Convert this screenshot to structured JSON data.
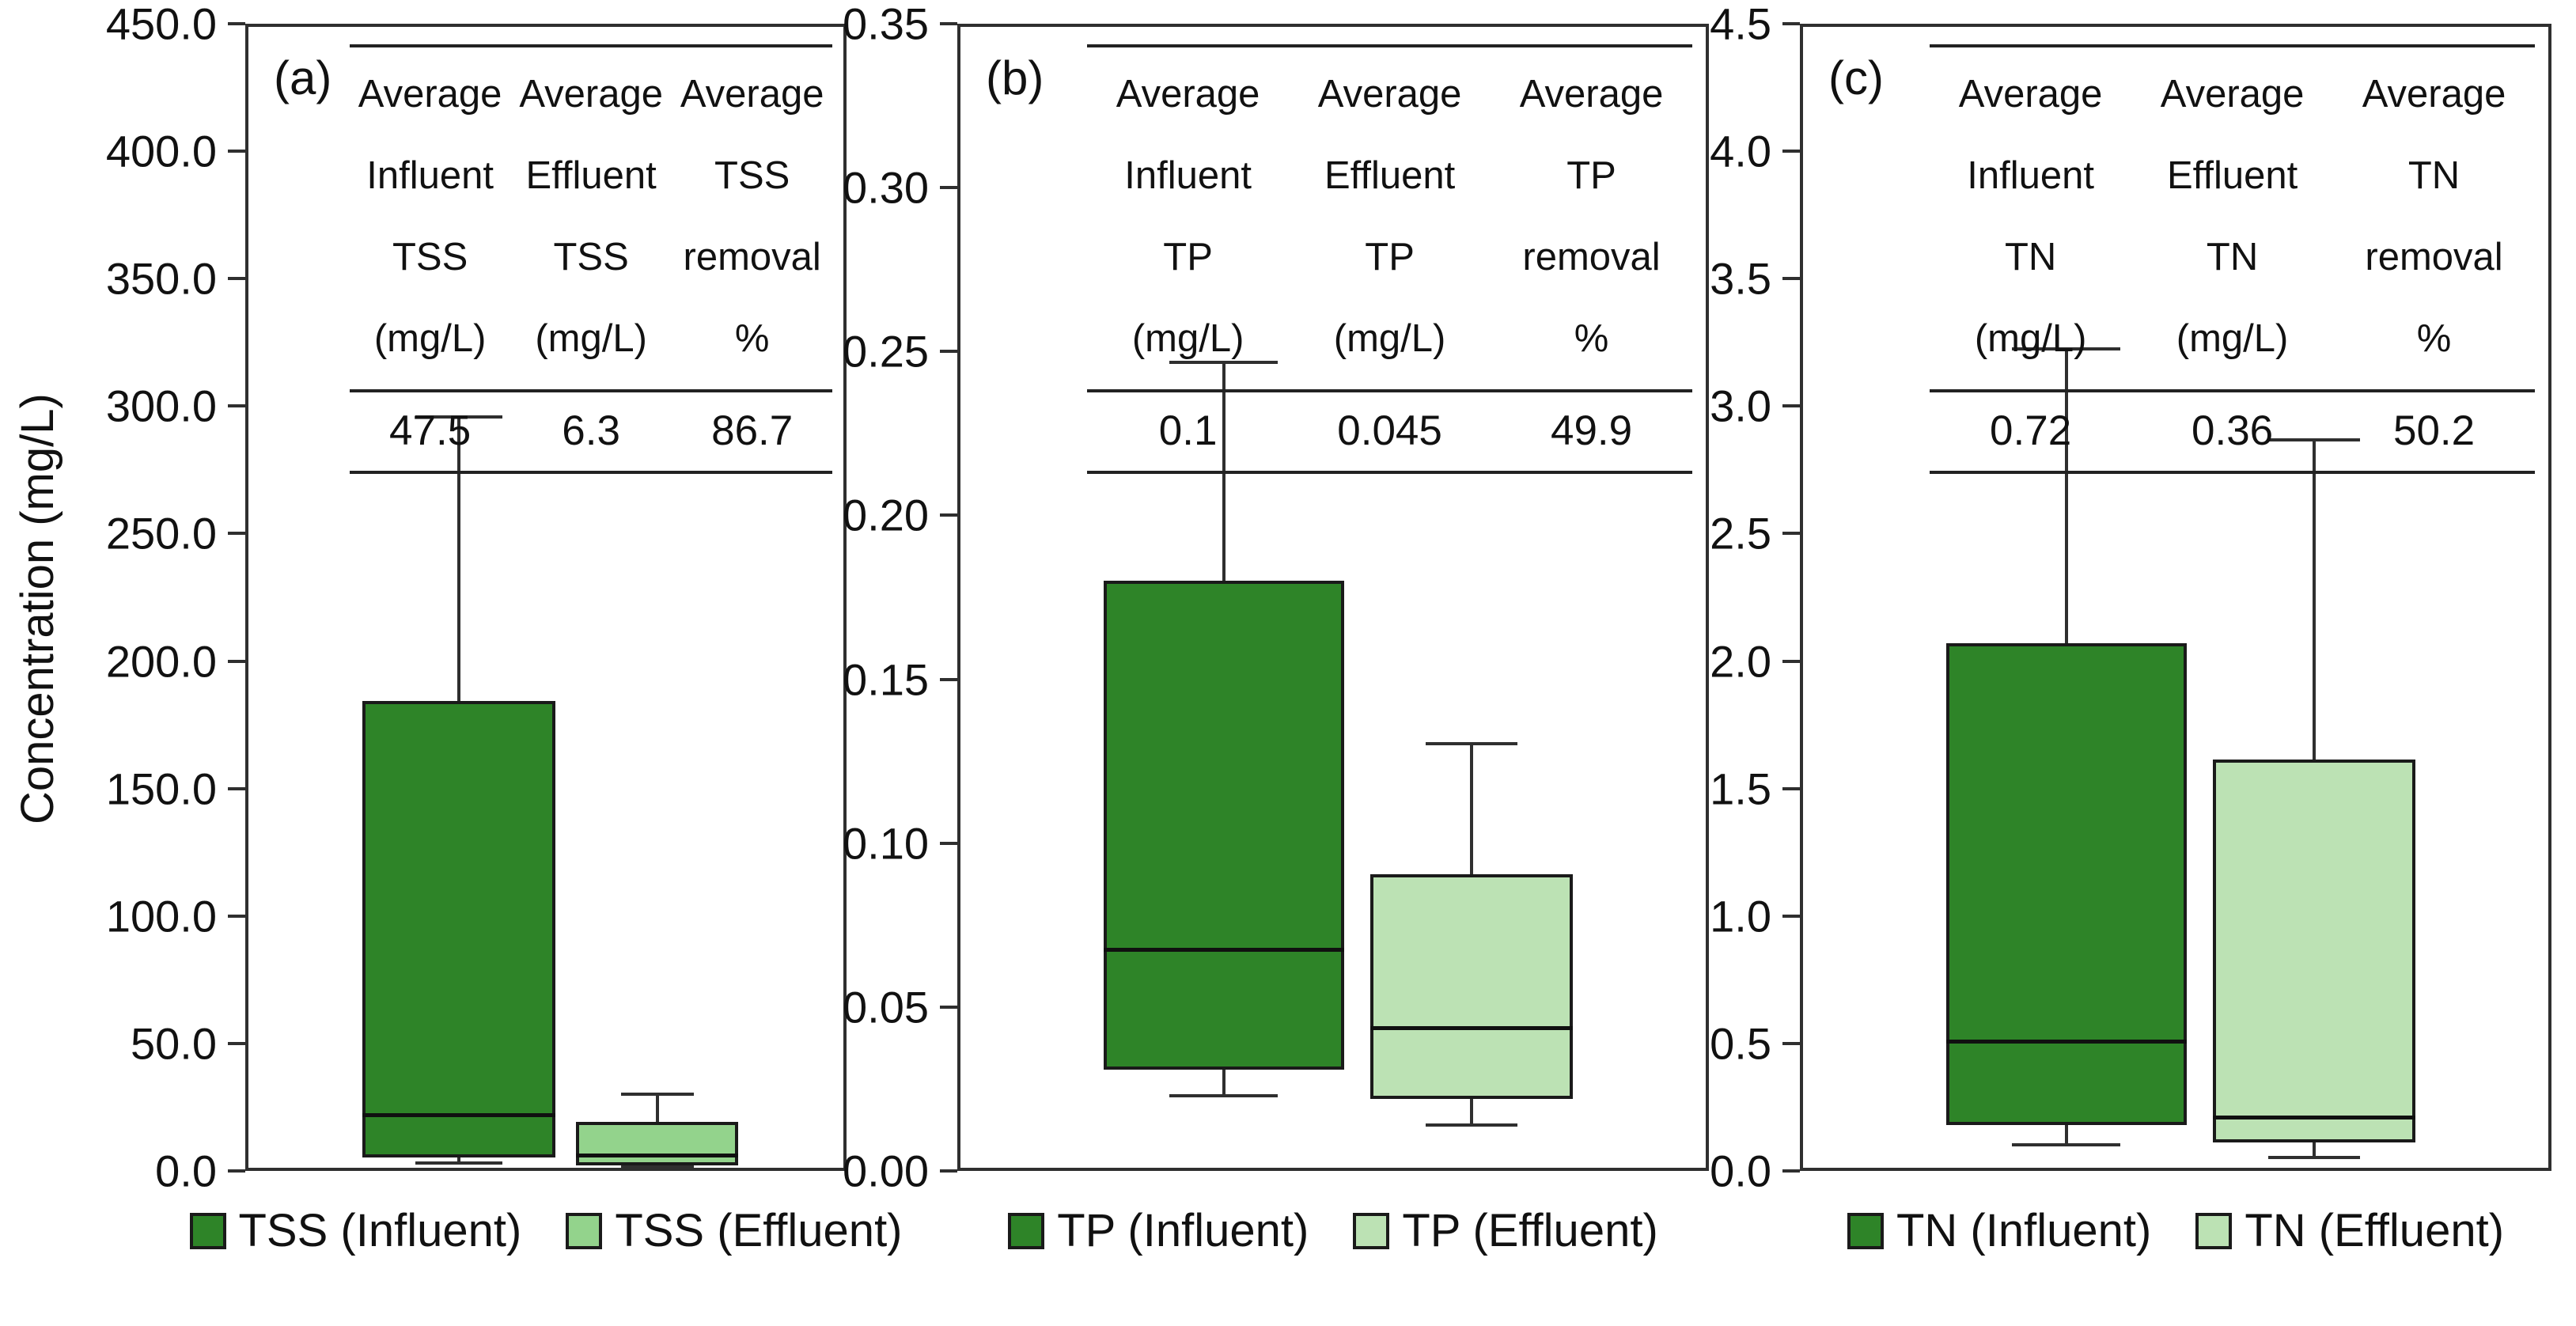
{
  "figure": {
    "y_axis_label": "Concentration (mg/L)",
    "colors": {
      "influent_fill": "#2E8428",
      "effluent_fill_panel_a": "#93D38C",
      "effluent_fill_panel_bc": "#BCE2B4",
      "box_border": "#1A1A1A",
      "axis": "#2F2F2F"
    }
  },
  "chart_data": [
    {
      "type": "boxplot",
      "panel_label": "(a)",
      "analyte": "TSS",
      "ylim": [
        0,
        450
      ],
      "grid": false,
      "yticks": [
        "450.0",
        "400.0",
        "350.0",
        "300.0",
        "250.0",
        "200.0",
        "150.0",
        "100.0",
        "50.0",
        "0.0"
      ],
      "series": [
        {
          "name": "TSS (Influent)",
          "fill": "influent",
          "min": 2,
          "q1": 4,
          "median": 21,
          "q3": 184,
          "max": 296
        },
        {
          "name": "TSS (Effluent)",
          "fill": "effluent_a",
          "min": 0.5,
          "q1": 1,
          "median": 5,
          "q3": 18,
          "max": 29
        }
      ],
      "inset_table": {
        "col_headers": [
          [
            "Average",
            "Influent",
            "TSS",
            "(mg/L)"
          ],
          [
            "Average",
            "Effluent",
            "TSS",
            "(mg/L)"
          ],
          [
            "Average",
            "TSS",
            "removal",
            "%"
          ]
        ],
        "values": [
          "47.5",
          "6.3",
          "86.7"
        ]
      },
      "legend": [
        {
          "label": "TSS (Influent)",
          "fill": "influent"
        },
        {
          "label": "TSS (Effluent)",
          "fill": "effluent_a"
        }
      ]
    },
    {
      "type": "boxplot",
      "panel_label": "(b)",
      "analyte": "TP",
      "ylim": [
        0,
        0.35
      ],
      "grid": false,
      "yticks": [
        "0.35",
        "0.30",
        "0.25",
        "0.20",
        "0.15",
        "0.10",
        "0.05",
        "0.00"
      ],
      "series": [
        {
          "name": "TP (Influent)",
          "fill": "influent",
          "min": 0.022,
          "q1": 0.03,
          "median": 0.067,
          "q3": 0.18,
          "max": 0.247
        },
        {
          "name": "TP (Effluent)",
          "fill": "effluent_bc",
          "min": 0.013,
          "q1": 0.021,
          "median": 0.043,
          "q3": 0.09,
          "max": 0.13
        }
      ],
      "inset_table": {
        "col_headers": [
          [
            "Average",
            "Influent",
            "TP",
            "(mg/L)"
          ],
          [
            "Average",
            "Effluent",
            "TP",
            "(mg/L)"
          ],
          [
            "Average",
            "TP",
            "removal",
            "%"
          ]
        ],
        "values": [
          "0.1",
          "0.045",
          "49.9"
        ]
      },
      "legend": [
        {
          "label": "TP (Influent)",
          "fill": "influent"
        },
        {
          "label": "TP (Effluent)",
          "fill": "effluent_bc"
        }
      ]
    },
    {
      "type": "boxplot",
      "panel_label": "(c)",
      "analyte": "TN",
      "ylim": [
        0,
        4.5
      ],
      "grid": false,
      "yticks": [
        "4.5",
        "4.0",
        "3.5",
        "3.0",
        "2.5",
        "2.0",
        "1.5",
        "1.0",
        "0.5",
        "0.0"
      ],
      "series": [
        {
          "name": "TN (Influent)",
          "fill": "influent",
          "min": 0.09,
          "q1": 0.17,
          "median": 0.5,
          "q3": 2.07,
          "max": 3.23
        },
        {
          "name": "TN (Effluent)",
          "fill": "effluent_bc",
          "min": 0.04,
          "q1": 0.1,
          "median": 0.2,
          "q3": 1.61,
          "max": 2.87
        }
      ],
      "inset_table": {
        "col_headers": [
          [
            "Average",
            "Influent",
            "TN",
            "(mg/L)"
          ],
          [
            "Average",
            "Effluent",
            "TN",
            "(mg/L)"
          ],
          [
            "Average",
            "TN",
            "removal",
            "%"
          ]
        ],
        "values": [
          "0.72",
          "0.36",
          "50.2"
        ]
      },
      "legend": [
        {
          "label": "TN (Influent)",
          "fill": "influent"
        },
        {
          "label": "TN (Effluent)",
          "fill": "effluent_bc"
        }
      ]
    }
  ]
}
